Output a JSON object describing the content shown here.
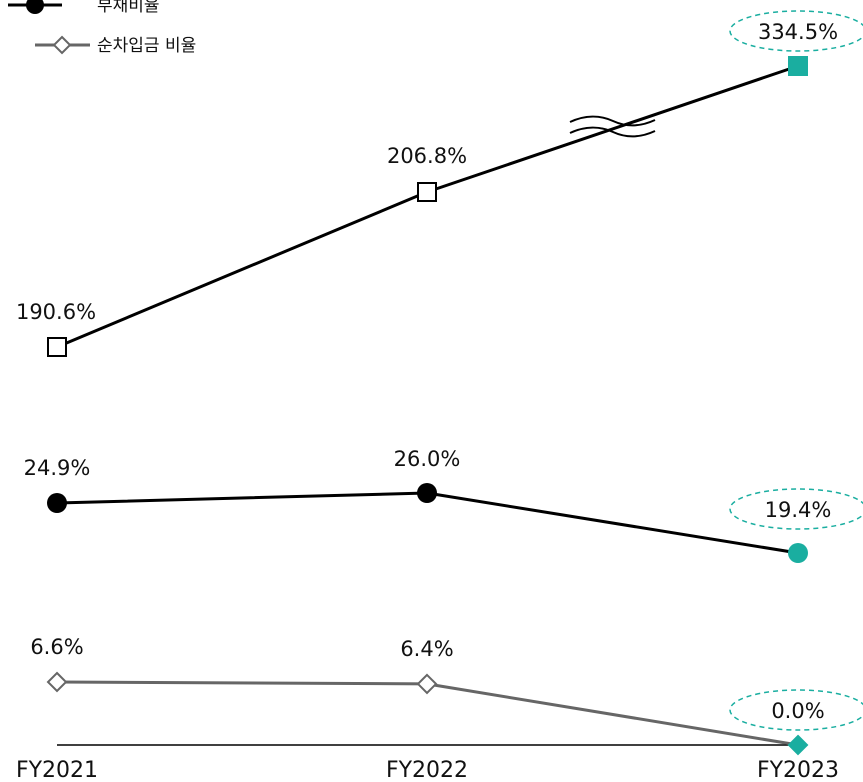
{
  "colors": {
    "line": "#000000",
    "gray": "#666666",
    "accent": "#1aaea0"
  },
  "chart_data": {
    "type": "line",
    "categories": [
      "FY2021",
      "FY2022",
      "FY2023"
    ],
    "legend_position": "top-left",
    "axis_break_between": [
      "FY2022",
      "FY2023"
    ],
    "series": [
      {
        "key": "debt",
        "name": "",
        "values": [
          190.6,
          206.8,
          334.5
        ],
        "labels": [
          "190.6%",
          "206.8%",
          "334.5%"
        ],
        "marker": "square-open"
      },
      {
        "key": "liab",
        "name": "부채비율",
        "values": [
          24.9,
          26.0,
          19.4
        ],
        "labels": [
          "24.9%",
          "26.0%",
          "19.4%"
        ],
        "marker": "circle"
      },
      {
        "key": "net",
        "name": "순차입금 비율",
        "values": [
          6.6,
          6.4,
          0.0
        ],
        "labels": [
          "6.6%",
          "6.4%",
          "0.0%"
        ],
        "marker": "diamond-open"
      }
    ]
  }
}
